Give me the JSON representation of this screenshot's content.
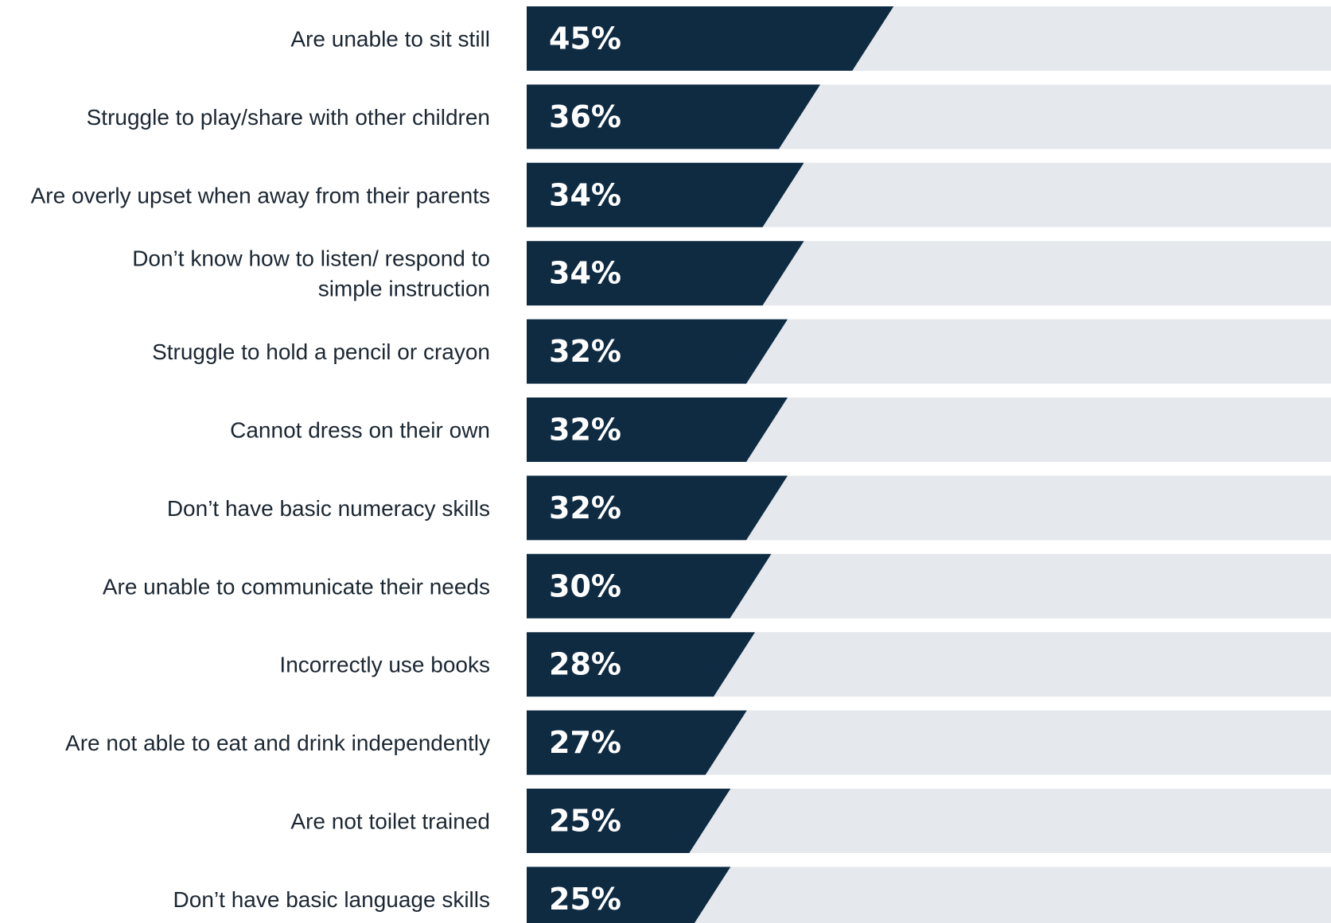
{
  "colors": {
    "bar_fill": "#0e2b42",
    "track_fill": "#e5e8ec",
    "label_text": "#1b2733",
    "value_text": "#ffffff"
  },
  "chart_data": {
    "type": "bar",
    "orientation": "horizontal",
    "title": "",
    "xlabel": "",
    "ylabel": "",
    "xlim": [
      0,
      100
    ],
    "grid": false,
    "legend": "none",
    "categories": [
      "Are unable to sit still",
      "Struggle to play/share with other children",
      "Are overly upset when away from their parents",
      "Don’t know how to listen/ respond to simple instruction",
      "Struggle to hold a pencil or crayon",
      "Cannot dress on their own",
      "Don’t have basic numeracy skills",
      "Are unable to communicate their needs",
      "Incorrectly use books",
      "Are not able to eat and drink independently",
      "Are not toilet trained",
      "Don’t have basic language skills"
    ],
    "category_lines": [
      [
        "Are unable to sit still"
      ],
      [
        "Struggle to play/share with other children"
      ],
      [
        "Are overly upset when away from their parents"
      ],
      [
        "Don’t know how to listen/ respond to",
        "simple instruction"
      ],
      [
        "Struggle to hold a pencil or crayon"
      ],
      [
        "Cannot dress on their own"
      ],
      [
        "Don’t have basic numeracy skills"
      ],
      [
        "Are unable to communicate their needs"
      ],
      [
        "Incorrectly use books"
      ],
      [
        "Are not able to eat and drink independently"
      ],
      [
        "Are not toilet trained"
      ],
      [
        "Don’t have basic language skills"
      ]
    ],
    "values": [
      45,
      36,
      34,
      34,
      32,
      32,
      32,
      30,
      28,
      27,
      25,
      25
    ],
    "value_labels": [
      "45%",
      "36%",
      "34%",
      "34%",
      "32%",
      "32%",
      "32%",
      "30%",
      "28%",
      "27%",
      "25%",
      "25%"
    ]
  }
}
